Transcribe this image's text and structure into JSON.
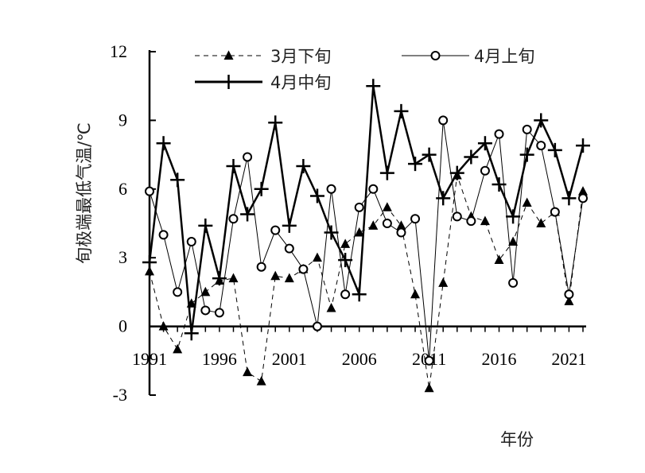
{
  "chart_data": {
    "type": "line",
    "xlabel": "年份",
    "ylabel": "旬极端最低气温/℃",
    "xlim": [
      1991,
      2022
    ],
    "ylim": [
      -3,
      12
    ],
    "yticks": [
      -3,
      0,
      3,
      6,
      9,
      12
    ],
    "xticks": [
      1991,
      1996,
      2001,
      2006,
      2011,
      2016,
      2021
    ],
    "grid": false,
    "legend_position": "top",
    "x": [
      1991,
      1992,
      1993,
      1994,
      1995,
      1996,
      1997,
      1998,
      1999,
      2000,
      2001,
      2002,
      2003,
      2004,
      2005,
      2006,
      2007,
      2008,
      2009,
      2010,
      2011,
      2012,
      2013,
      2014,
      2015,
      2016,
      2017,
      2018,
      2019,
      2020,
      2021,
      2022
    ],
    "series": [
      {
        "name": "3月下旬",
        "style": "dashed-triangle",
        "color": "#000000",
        "values": [
          2.4,
          0,
          -1,
          1,
          1.5,
          2,
          2.1,
          -2,
          -2.4,
          2.2,
          2.1,
          2.5,
          3,
          0.8,
          3.6,
          4.1,
          4.4,
          5.2,
          4.4,
          1.4,
          -2.7,
          1.9,
          6.6,
          4.8,
          4.6,
          2.9,
          3.7,
          5.4,
          4.5,
          5,
          1.1,
          5.9
        ]
      },
      {
        "name": "4月上旬",
        "style": "thin-circle",
        "color": "#000000",
        "values": [
          5.9,
          4,
          1.5,
          3.7,
          0.7,
          0.6,
          4.7,
          7.4,
          2.6,
          4.2,
          3.4,
          2.5,
          0,
          6,
          1.4,
          5.2,
          6,
          4.5,
          4.1,
          4.7,
          -1.5,
          9,
          4.8,
          4.6,
          6.8,
          8.4,
          1.9,
          8.6,
          7.9,
          5,
          1.4,
          5.6
        ]
      },
      {
        "name": "4月中旬",
        "style": "thick-plus",
        "color": "#000000",
        "values": [
          2.8,
          8,
          6.4,
          -0.3,
          4.4,
          2.1,
          7,
          4.9,
          6,
          8.9,
          4.4,
          7,
          5.7,
          4.1,
          2.9,
          1.4,
          10.5,
          6.7,
          9.4,
          7.1,
          7.5,
          5.6,
          6.7,
          7.4,
          8,
          6.2,
          4.8,
          7.5,
          9,
          7.7,
          5.6,
          7.9
        ]
      }
    ]
  }
}
